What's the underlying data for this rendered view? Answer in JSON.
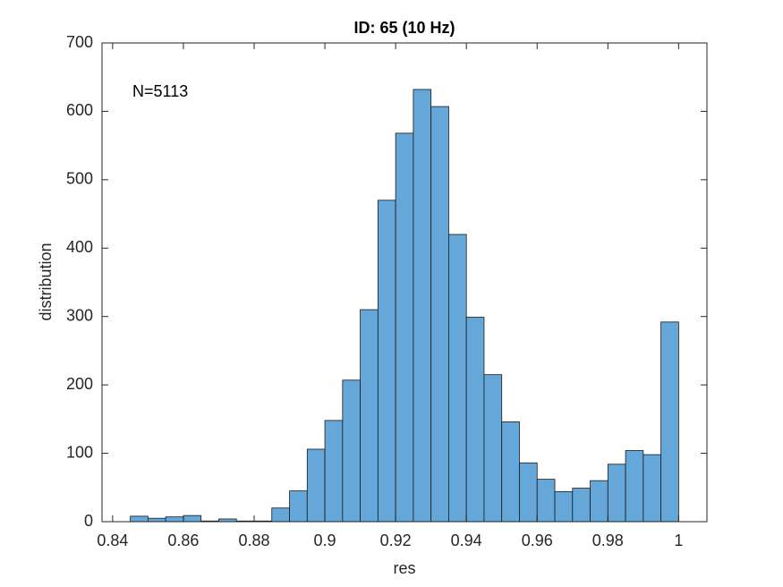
{
  "chart_data": {
    "type": "histogram",
    "title": "ID: 65 (10 Hz)",
    "x_label": "res",
    "y_label": "distribution",
    "annotation": "N=5113",
    "bins": [
      0.845,
      0.85,
      0.855,
      0.86,
      0.865,
      0.87,
      0.875,
      0.88,
      0.885,
      0.89,
      0.895,
      0.9,
      0.905,
      0.91,
      0.915,
      0.92,
      0.925,
      0.93,
      0.935,
      0.94,
      0.945,
      0.95,
      0.955,
      0.96,
      0.965,
      0.97,
      0.975,
      0.98,
      0.985,
      0.99,
      0.995,
      1
    ],
    "counts": [
      8,
      5,
      7,
      9,
      1,
      4,
      1,
      1,
      20,
      45,
      106,
      148,
      207,
      310,
      470,
      568,
      632,
      607,
      420,
      299,
      215,
      146,
      86,
      62,
      44,
      49,
      60,
      84,
      104,
      98,
      292
    ],
    "color": "#65a7d8",
    "xlim": [
      0.837,
      1.008
    ],
    "xticks": [
      0.84,
      0.86,
      0.88,
      0.9,
      0.92,
      0.94,
      0.96,
      0.98,
      1
    ],
    "ylim": [
      0,
      700
    ],
    "yticks": [
      0,
      100,
      200,
      300,
      400,
      500,
      600,
      700
    ]
  }
}
